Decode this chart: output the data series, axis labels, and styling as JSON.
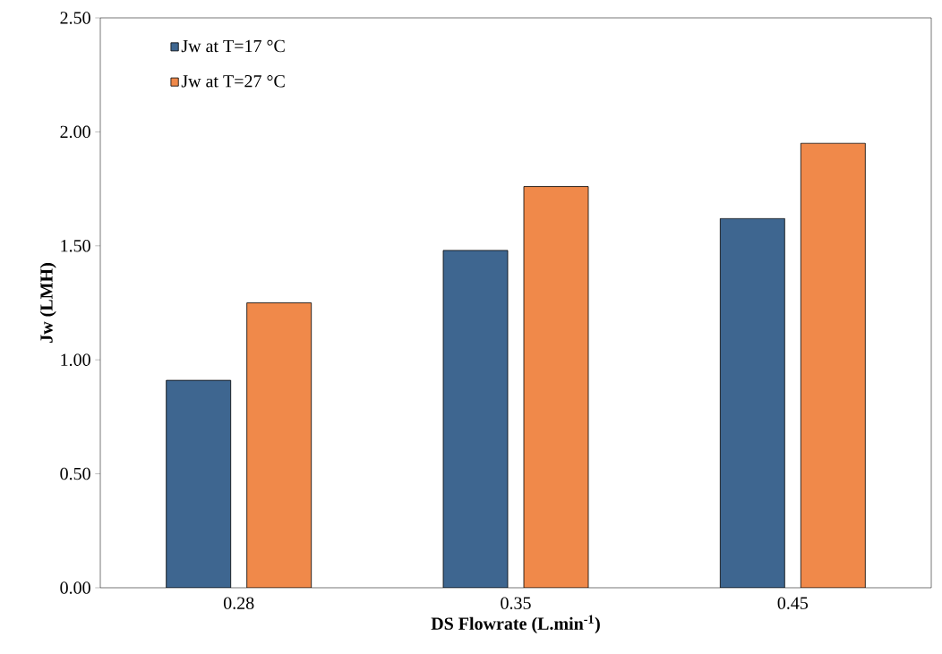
{
  "chart_data": {
    "type": "bar",
    "xlabel": "DS Flowrate (L.min$^{-1}$)",
    "ylabel": "Jw (LMH)",
    "categories": [
      "0.28",
      "0.35",
      "0.45"
    ],
    "series": [
      {
        "name": "Jw at T=17 °C",
        "color": "#3e6690",
        "values": [
          0.91,
          1.48,
          1.62
        ]
      },
      {
        "name": "Jw at T=27 °C",
        "color": "#f0894a",
        "values": [
          1.25,
          1.76,
          1.95
        ]
      }
    ],
    "ylim": [
      0,
      2.5
    ],
    "yticks": [
      {
        "value": 0,
        "label": "0.00"
      },
      {
        "value": 0.5,
        "label": "0.50"
      },
      {
        "value": 1,
        "label": "1.00"
      },
      {
        "value": 1.5,
        "label": "1.50"
      },
      {
        "value": 2,
        "label": "2.00"
      },
      {
        "value": 2.5,
        "label": "2.50"
      }
    ],
    "legend": "top left"
  }
}
